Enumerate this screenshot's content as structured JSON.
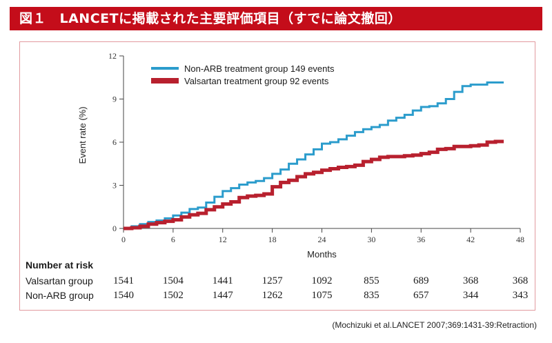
{
  "header": {
    "title": "図１　LANCETに掲載された主要評価項目（すでに論文撤回）"
  },
  "chart_data": {
    "type": "line",
    "xlabel": "Months",
    "ylabel": "Event rate (%)",
    "xlim": [
      0,
      48
    ],
    "ylim": [
      0,
      12
    ],
    "xticks": [
      0,
      6,
      12,
      18,
      24,
      30,
      36,
      42,
      48
    ],
    "yticks": [
      0,
      3,
      6,
      9,
      12
    ],
    "legend_position": "top-left",
    "series": [
      {
        "name": "Non-ARB treatment group 149 events",
        "color": "#2b9ccc",
        "x": [
          0,
          1,
          2,
          3,
          4,
          5,
          6,
          7,
          8,
          9,
          10,
          11,
          12,
          13,
          14,
          15,
          16,
          17,
          18,
          19,
          20,
          21,
          22,
          23,
          24,
          25,
          26,
          27,
          28,
          29,
          30,
          31,
          32,
          33,
          34,
          35,
          36,
          37,
          38,
          39,
          40,
          41,
          42,
          43,
          44,
          45,
          46
        ],
        "y": [
          0,
          0.15,
          0.3,
          0.45,
          0.55,
          0.7,
          0.9,
          1.1,
          1.35,
          1.45,
          1.8,
          2.2,
          2.6,
          2.8,
          3.05,
          3.2,
          3.3,
          3.5,
          3.8,
          4.1,
          4.5,
          4.8,
          5.15,
          5.5,
          5.9,
          6.0,
          6.2,
          6.45,
          6.7,
          6.9,
          7.05,
          7.2,
          7.5,
          7.7,
          7.9,
          8.2,
          8.45,
          8.5,
          8.7,
          9.0,
          9.5,
          9.9,
          10.0,
          10.0,
          10.15,
          10.15,
          10.15
        ]
      },
      {
        "name": "Valsartan treatment group 92 events",
        "color": "#b8202e",
        "x": [
          0,
          1,
          2,
          3,
          4,
          5,
          6,
          7,
          8,
          9,
          10,
          11,
          12,
          13,
          14,
          15,
          16,
          17,
          18,
          19,
          20,
          21,
          22,
          23,
          24,
          25,
          26,
          27,
          28,
          29,
          30,
          31,
          32,
          33,
          34,
          35,
          36,
          37,
          38,
          39,
          40,
          41,
          42,
          43,
          44,
          45,
          46
        ],
        "y": [
          0,
          0.05,
          0.15,
          0.3,
          0.4,
          0.5,
          0.6,
          0.8,
          0.95,
          1.05,
          1.3,
          1.5,
          1.7,
          1.85,
          2.15,
          2.25,
          2.3,
          2.4,
          2.9,
          3.2,
          3.35,
          3.6,
          3.8,
          3.9,
          4.05,
          4.15,
          4.25,
          4.3,
          4.4,
          4.65,
          4.8,
          4.95,
          5.0,
          5.0,
          5.05,
          5.1,
          5.2,
          5.3,
          5.5,
          5.55,
          5.7,
          5.7,
          5.75,
          5.8,
          6.0,
          6.05,
          6.05
        ]
      }
    ],
    "risk_table": {
      "title": "Number at risk",
      "rows": [
        {
          "label": "Valsartan group",
          "values": [
            "1541",
            "1504",
            "1441",
            "1257",
            "1092",
            "855",
            "689",
            "368",
            "368"
          ]
        },
        {
          "label": "Non-ARB group",
          "values": [
            "1540",
            "1502",
            "1447",
            "1262",
            "1075",
            "835",
            "657",
            "344",
            "343"
          ]
        }
      ]
    }
  },
  "footer": {
    "citation": "(Mochizuki et al.LANCET 2007;369:1431-39:Retraction)"
  }
}
